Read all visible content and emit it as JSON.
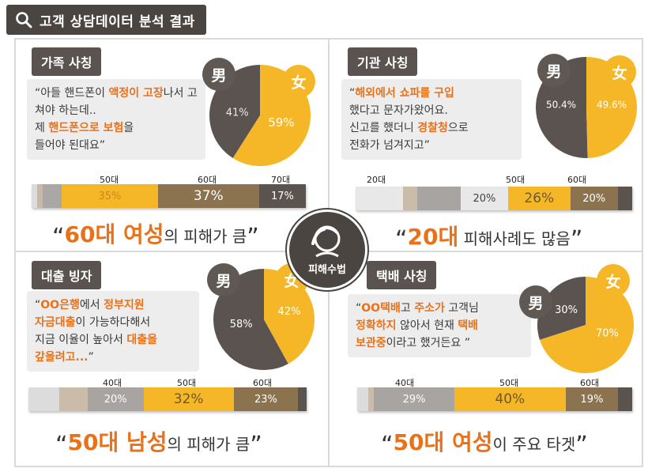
{
  "title": "고객 상담데이터 분석 결과",
  "center": {
    "label": "피해수법"
  },
  "gender": {
    "male": "男",
    "female": "女"
  },
  "colors": {
    "female": "#f5b727",
    "male": "#5a5350",
    "accent": "#e8721c"
  },
  "panels": [
    {
      "tag": "가족 사칭",
      "quote": [
        "“아들 핸드폰이 ",
        "액정이 고장",
        "나서 고쳐야 하는데..",
        "제 ",
        "핸드폰으로 보험",
        "을",
        "들어야 된대요”"
      ],
      "headline_big": "60대 여성",
      "headline_rest": "의 피해가 큼",
      "ages": [
        "50대",
        "60대",
        "70대"
      ]
    },
    {
      "tag": "기관 사칭",
      "quote": [
        "“",
        "해외에서 쇼파를 구입",
        "",
        "했다고 문자가왔어요.",
        "신고를 했더니 ",
        "경찰청",
        "으로",
        "전화가 넘겨지고”"
      ],
      "headline_big": "20대",
      "headline_rest": "피해사례도 많음",
      "ages": [
        "20대",
        "50대",
        "60대"
      ]
    },
    {
      "tag": "대출 빙자",
      "quote": [
        "“",
        "OO은행",
        "에서 ",
        "정부지원",
        "자금대출",
        "이 가능하다해서",
        "지금 이율이 높아서 ",
        "대출을",
        "갚을려고...",
        "”"
      ],
      "headline_big": "50대 남성",
      "headline_rest": "의 피해가 큼",
      "ages": [
        "40대",
        "50대",
        "60대"
      ]
    },
    {
      "tag": "택배 사칭",
      "quote": [
        "“",
        "OO택배",
        "고 ",
        "주소가",
        " 고객님",
        "정확하지",
        " 않아서 현재 ",
        "택배",
        "보관중",
        "이라고 했거든요 ”"
      ],
      "headline_big": "50대 여성",
      "headline_rest": "이 주요 타겟",
      "ages": [
        "40대",
        "50대",
        "60대"
      ]
    }
  ],
  "chart_data": [
    {
      "type": "pie",
      "title": "가족 사칭",
      "categories": [
        "男",
        "女"
      ],
      "values": [
        41,
        59
      ],
      "labels": [
        "41%",
        "59%"
      ],
      "age_bar": {
        "type": "bar",
        "categories": [
          "50대",
          "60대",
          "70대"
        ],
        "values": [
          35,
          37,
          17
        ],
        "labels": [
          "35%",
          "37%",
          "17%"
        ]
      }
    },
    {
      "type": "pie",
      "title": "기관 사칭",
      "categories": [
        "男",
        "女"
      ],
      "values": [
        50.4,
        49.6
      ],
      "labels": [
        "50.4%",
        "49.6%"
      ],
      "age_bar": {
        "type": "bar",
        "categories": [
          "20대",
          "50대",
          "60대"
        ],
        "values": [
          20,
          26,
          20
        ],
        "labels": [
          "20%",
          "26%",
          "20%"
        ]
      }
    },
    {
      "type": "pie",
      "title": "대출 빙자",
      "categories": [
        "男",
        "女"
      ],
      "values": [
        58,
        42
      ],
      "labels": [
        "58%",
        "42%"
      ],
      "age_bar": {
        "type": "bar",
        "categories": [
          "40대",
          "50대",
          "60대"
        ],
        "values": [
          20,
          32,
          23
        ],
        "labels": [
          "20%",
          "32%",
          "23%"
        ]
      }
    },
    {
      "type": "pie",
      "title": "택배 사칭",
      "categories": [
        "男",
        "女"
      ],
      "values": [
        30,
        70
      ],
      "labels": [
        "30%",
        "70%"
      ],
      "age_bar": {
        "type": "bar",
        "categories": [
          "40대",
          "50대",
          "60대"
        ],
        "values": [
          29,
          40,
          19
        ],
        "labels": [
          "29%",
          "40%",
          "19%"
        ]
      }
    }
  ]
}
